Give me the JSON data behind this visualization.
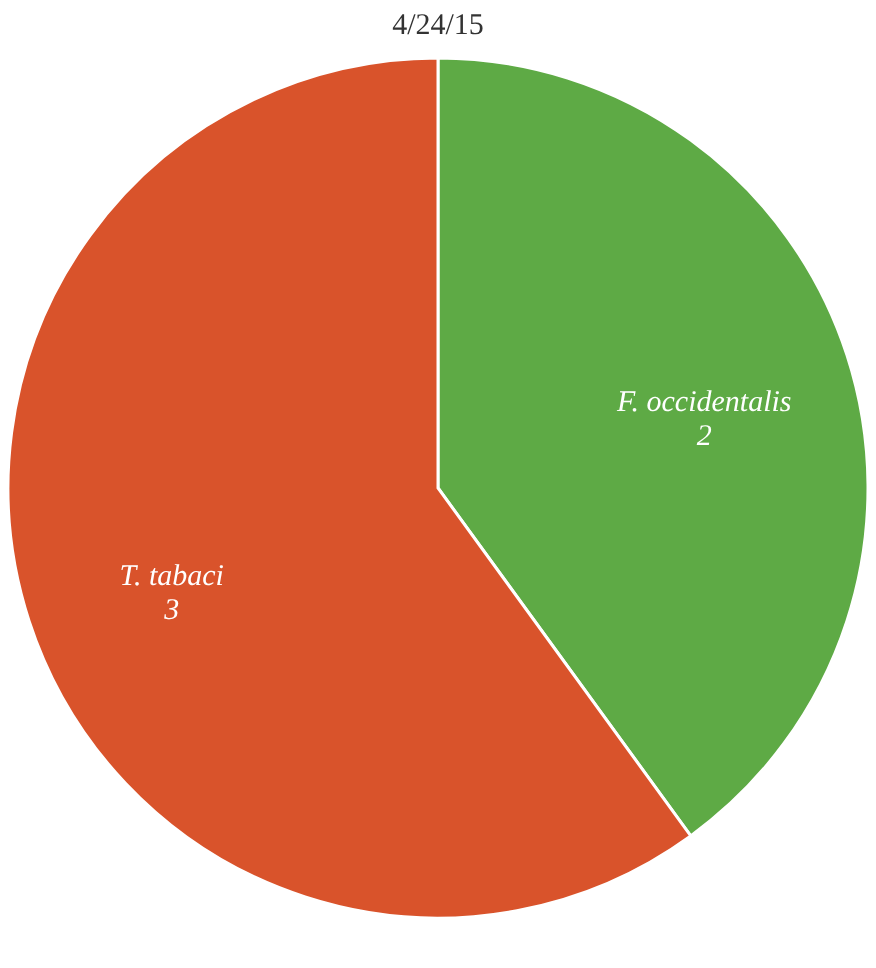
{
  "chart_data": {
    "type": "pie",
    "title": "4/24/15",
    "categories": [
      "F. occidentalis",
      "T. tabaci"
    ],
    "values": [
      2,
      3
    ],
    "colors": [
      "#5eaa45",
      "#d9532b"
    ],
    "data_labels": true,
    "legend": false
  }
}
